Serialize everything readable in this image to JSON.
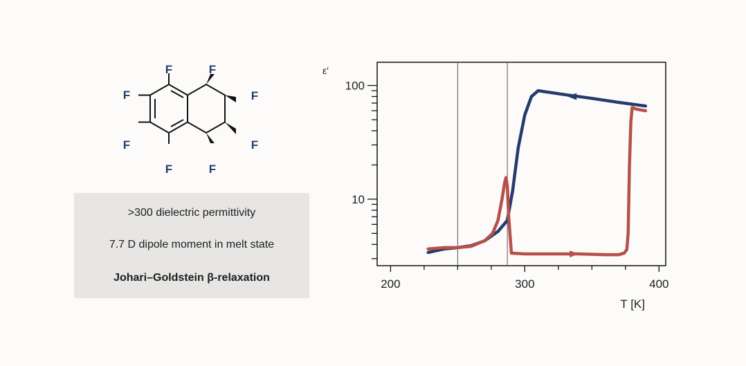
{
  "molecule": {
    "atom_symbol": "F",
    "colors": {
      "atom": "#243b6c",
      "bond": "#111111"
    }
  },
  "properties": {
    "items": [
      ">300 dielectric permittivity",
      "7.7 D dipole moment in melt state",
      "Johari–Goldstein β-relaxation"
    ]
  },
  "chart_data": {
    "type": "line",
    "title": "",
    "xlabel": "T [K]",
    "ylabel": "ε'",
    "xlim": [
      190,
      405
    ],
    "ylim": [
      2.6,
      160
    ],
    "yscale": "log",
    "xticks": [
      200,
      300,
      400
    ],
    "xtick_labels": [
      "200",
      "300",
      "400"
    ],
    "yticks": [
      10,
      100
    ],
    "ytick_labels": [
      "10",
      "100"
    ],
    "vlines": [
      250,
      287
    ],
    "grid": false,
    "series": [
      {
        "color": "#243b6c",
        "direction": "cooling",
        "x": [
          228,
          240,
          250,
          260,
          270,
          280,
          287,
          291,
          295,
          300,
          305,
          310,
          330,
          350,
          370,
          390
        ],
        "y": [
          3.4,
          3.65,
          3.75,
          3.9,
          4.3,
          5.2,
          6.5,
          12,
          28,
          55,
          80,
          90,
          83,
          77,
          71,
          66
        ]
      },
      {
        "color": "#b5504b",
        "direction": "heating",
        "x": [
          228,
          240,
          250,
          260,
          270,
          276,
          280,
          283,
          285,
          286,
          287,
          288,
          290,
          300,
          320,
          340,
          360,
          370,
          374,
          376,
          377,
          378,
          379,
          380,
          383,
          386,
          390
        ],
        "y": [
          3.65,
          3.75,
          3.75,
          3.85,
          4.3,
          5.0,
          6.5,
          10,
          14,
          15.5,
          13,
          7,
          3.35,
          3.3,
          3.3,
          3.3,
          3.25,
          3.25,
          3.35,
          3.6,
          5,
          20,
          48,
          64,
          62,
          61,
          60
        ]
      }
    ]
  }
}
